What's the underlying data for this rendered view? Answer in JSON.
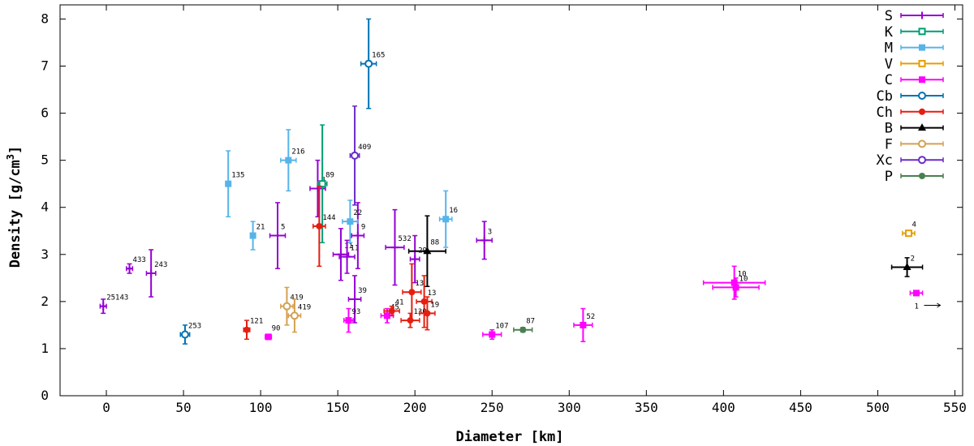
{
  "chart_data": {
    "type": "scatter",
    "xlabel": "Diameter [km]",
    "ylabel_main": "Density [g/cm",
    "ylabel_sup": "3",
    "ylabel_end": "]",
    "xlim": [
      -30,
      555
    ],
    "ylim": [
      0,
      8.3
    ],
    "xticks": [
      0,
      50,
      100,
      150,
      200,
      250,
      300,
      350,
      400,
      450,
      500,
      550
    ],
    "yticks": [
      0,
      1,
      2,
      3,
      4,
      5,
      6,
      7,
      8
    ],
    "legend_position": "top-right",
    "extra_annotation": {
      "text": "1",
      "arrow": true,
      "x": 530,
      "y": 1.92
    },
    "series": [
      {
        "name": "S",
        "color": "#9400d3",
        "marker": "plus",
        "points": [
          {
            "x": -2,
            "y": 1.9,
            "xerr": 2,
            "yerr": 0.15,
            "label": "25143"
          },
          {
            "x": 15,
            "y": 2.7,
            "xerr": 2,
            "yerr": 0.1,
            "label": "433"
          },
          {
            "x": 29,
            "y": 2.6,
            "xerr": 3,
            "yerr": 0.5,
            "label": "243"
          },
          {
            "x": 111,
            "y": 3.4,
            "xerr": 5,
            "yerr": 0.7,
            "label": "5"
          },
          {
            "x": 137,
            "y": 4.4,
            "xerr": 5,
            "yerr": 0.6,
            "label": "8"
          },
          {
            "x": 152,
            "y": 3.0,
            "xerr": 5,
            "yerr": 0.55,
            "label": "11"
          },
          {
            "x": 156,
            "y": 2.95,
            "xerr": 5,
            "yerr": 0.35,
            "label": "11"
          },
          {
            "x": 163,
            "y": 3.4,
            "xerr": 4,
            "yerr": 0.7,
            "label": "9"
          },
          {
            "x": 161,
            "y": 2.05,
            "xerr": 4,
            "yerr": 0.5,
            "label": "39"
          },
          {
            "x": 187,
            "y": 3.15,
            "xerr": 6,
            "yerr": 0.8,
            "label": "532"
          },
          {
            "x": 200,
            "y": 2.9,
            "xerr": 3,
            "yerr": 0.5,
            "label": "29"
          },
          {
            "x": 245,
            "y": 3.3,
            "xerr": 5,
            "yerr": 0.4,
            "label": "3"
          }
        ]
      },
      {
        "name": "K",
        "color": "#009e73",
        "marker": "square-open",
        "points": [
          {
            "x": 140,
            "y": 4.5,
            "xerr": 3,
            "yerr": 1.25,
            "label": "89"
          }
        ]
      },
      {
        "name": "M",
        "color": "#56b4e9",
        "marker": "square-filled",
        "points": [
          {
            "x": 79,
            "y": 4.5,
            "xerr": 0,
            "yerr": 0.7,
            "label": "135"
          },
          {
            "x": 95,
            "y": 3.4,
            "xerr": 0,
            "yerr": 0.3,
            "label": "21"
          },
          {
            "x": 118,
            "y": 5.0,
            "xerr": 5,
            "yerr": 0.65,
            "label": "216"
          },
          {
            "x": 158,
            "y": 3.7,
            "xerr": 5,
            "yerr": 0.45,
            "label": "22"
          },
          {
            "x": 220,
            "y": 3.75,
            "xerr": 4,
            "yerr": 0.6,
            "label": "16"
          }
        ]
      },
      {
        "name": "V",
        "color": "#e69f00",
        "marker": "square-open",
        "points": [
          {
            "x": 520,
            "y": 3.45,
            "xerr": 4,
            "yerr": 0.05,
            "label": "4"
          }
        ]
      },
      {
        "name": "C",
        "color": "#ff00ff",
        "marker": "square-filled",
        "points": [
          {
            "x": 105,
            "y": 1.25,
            "xerr": 2,
            "yerr": 0.05,
            "label": "90"
          },
          {
            "x": 157,
            "y": 1.6,
            "xerr": 3,
            "yerr": 0.25,
            "label": "93"
          },
          {
            "x": 182,
            "y": 1.7,
            "xerr": 4,
            "yerr": 0.15,
            "label": "45"
          },
          {
            "x": 250,
            "y": 1.3,
            "xerr": 6,
            "yerr": 0.1,
            "label": "107"
          },
          {
            "x": 309,
            "y": 1.5,
            "xerr": 6,
            "yerr": 0.35,
            "label": "52"
          },
          {
            "x": 407,
            "y": 2.4,
            "xerr": 20,
            "yerr": 0.35,
            "label": "10"
          },
          {
            "x": 408,
            "y": 2.3,
            "xerr": 15,
            "yerr": 0.2,
            "label": "10"
          },
          {
            "x": 525,
            "y": 2.18,
            "xerr": 4,
            "yerr": 0.05,
            "label": ""
          }
        ]
      },
      {
        "name": "Cb",
        "color": "#0072b2",
        "marker": "circle-open",
        "points": [
          {
            "x": 170,
            "y": 7.05,
            "xerr": 5,
            "yerr": 0.95,
            "label": "165"
          },
          {
            "x": 51,
            "y": 1.3,
            "xerr": 3,
            "yerr": 0.2,
            "label": "253"
          }
        ]
      },
      {
        "name": "Ch",
        "color": "#e51e10",
        "marker": "circle-filled",
        "points": [
          {
            "x": 91,
            "y": 1.4,
            "xerr": 2,
            "yerr": 0.2,
            "label": "121"
          },
          {
            "x": 138,
            "y": 3.6,
            "xerr": 4,
            "yerr": 0.85,
            "label": "144"
          },
          {
            "x": 185,
            "y": 1.8,
            "xerr": 5,
            "yerr": 0.1,
            "label": "41"
          },
          {
            "x": 198,
            "y": 2.2,
            "xerr": 6,
            "yerr": 0.6,
            "label": "13"
          },
          {
            "x": 206,
            "y": 2.0,
            "xerr": 5,
            "yerr": 0.55,
            "label": "13"
          },
          {
            "x": 197,
            "y": 1.6,
            "xerr": 6,
            "yerr": 0.15,
            "label": "130"
          },
          {
            "x": 208,
            "y": 1.75,
            "xerr": 5,
            "yerr": 0.35,
            "label": "19"
          }
        ]
      },
      {
        "name": "B",
        "color": "#000000",
        "marker": "triangle-filled",
        "points": [
          {
            "x": 208,
            "y": 3.07,
            "xerr": 12,
            "yerr": 0.75,
            "label": "88"
          },
          {
            "x": 519,
            "y": 2.73,
            "xerr": 10,
            "yerr": 0.2,
            "label": "2"
          }
        ]
      },
      {
        "name": "F",
        "color": "#d4a050",
        "marker": "circle-open",
        "points": [
          {
            "x": 117,
            "y": 1.9,
            "xerr": 4,
            "yerr": 0.4,
            "label": "419"
          },
          {
            "x": 122,
            "y": 1.7,
            "xerr": 4,
            "yerr": 0.35,
            "label": "419"
          }
        ]
      },
      {
        "name": "Xc",
        "color": "#6a2bc8",
        "marker": "circle-open",
        "points": [
          {
            "x": 161,
            "y": 5.1,
            "xerr": 3,
            "yerr": 1.05,
            "label": "409"
          }
        ]
      },
      {
        "name": "P",
        "color": "#4a8050",
        "marker": "circle-filled",
        "points": [
          {
            "x": 270,
            "y": 1.4,
            "xerr": 6,
            "yerr": 0.05,
            "label": "87"
          }
        ]
      }
    ]
  }
}
